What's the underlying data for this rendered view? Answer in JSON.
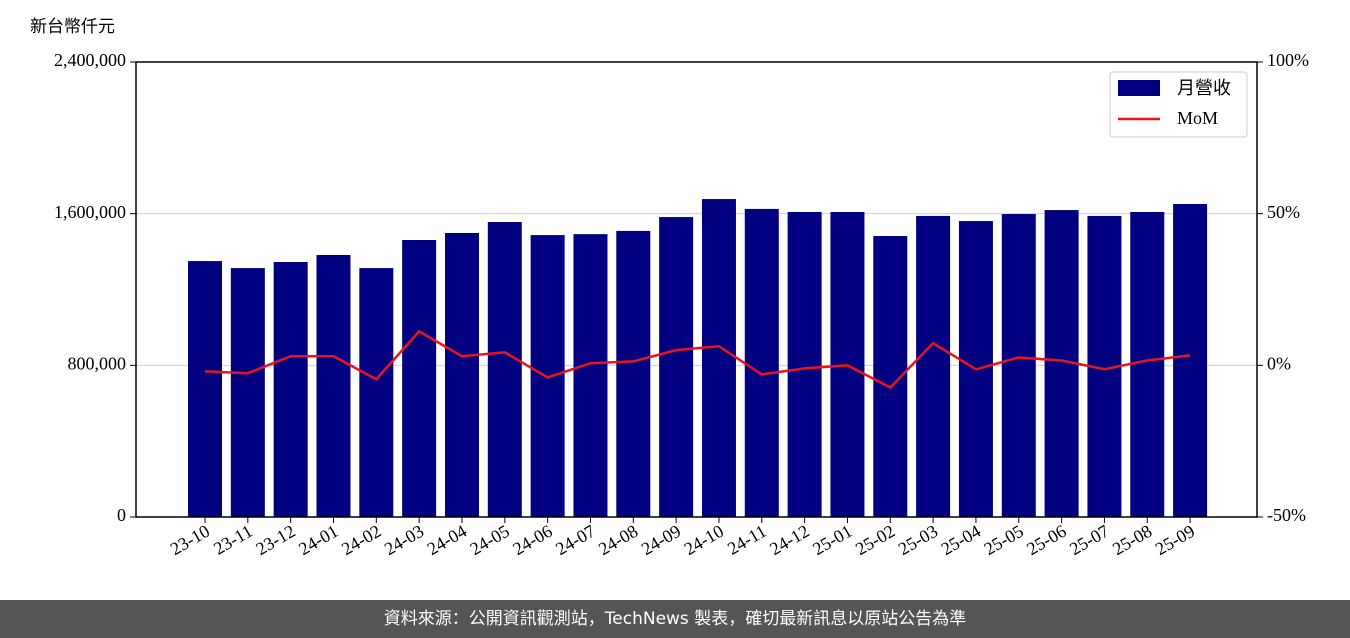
{
  "chart_data": {
    "type": "bar_line",
    "y_label": "新台幣仟元",
    "categories": [
      "23-10",
      "23-11",
      "23-12",
      "24-01",
      "24-02",
      "24-03",
      "24-04",
      "24-05",
      "24-06",
      "24-07",
      "24-08",
      "24-09",
      "24-10",
      "24-11",
      "24-12",
      "25-01",
      "25-02",
      "25-03",
      "25-04",
      "25-05",
      "25-06",
      "25-07",
      "25-08",
      "25-09"
    ],
    "series": [
      {
        "name": "月營收",
        "color": "#000080",
        "values": [
          1350000,
          1313000,
          1345000,
          1382000,
          1313000,
          1461000,
          1498000,
          1556000,
          1487000,
          1492000,
          1509000,
          1582000,
          1677000,
          1625000,
          1609000,
          1609000,
          1482000,
          1588000,
          1561000,
          1598000,
          1619000,
          1588000,
          1609000,
          1651000
        ]
      },
      {
        "name": "MoM",
        "color": "#e8141c",
        "axis": "y2",
        "values": [
          -2.0,
          -2.6,
          3.0,
          3.0,
          -4.6,
          11.2,
          3.0,
          4.3,
          -4.0,
          0.7,
          1.3,
          5.0,
          6.3,
          -3.0,
          -1.0,
          0.0,
          -7.3,
          7.3,
          -1.3,
          2.6,
          1.6,
          -1.3,
          1.6,
          3.3
        ]
      }
    ],
    "ylim": [
      0,
      2400000
    ],
    "yticks": [
      0,
      {
        "value": 800000,
        "label": "800,000"
      },
      {
        "value": 1600000,
        "label": "1,600,000"
      },
      {
        "value": 2400000,
        "label": "2,400,000"
      }
    ],
    "y2lim": [
      -50,
      100
    ],
    "y2ticks": [
      {
        "value": -50,
        "label": "-50%"
      },
      {
        "value": 0,
        "label": "0%"
      },
      {
        "value": 50,
        "label": "50%"
      },
      {
        "value": 100,
        "label": "100%"
      }
    ],
    "grid": true,
    "legend": "upper right",
    "footer": "資料來源：公開資訊觀測站，TechNews 製表，確切最新訊息以原站公告為準"
  }
}
